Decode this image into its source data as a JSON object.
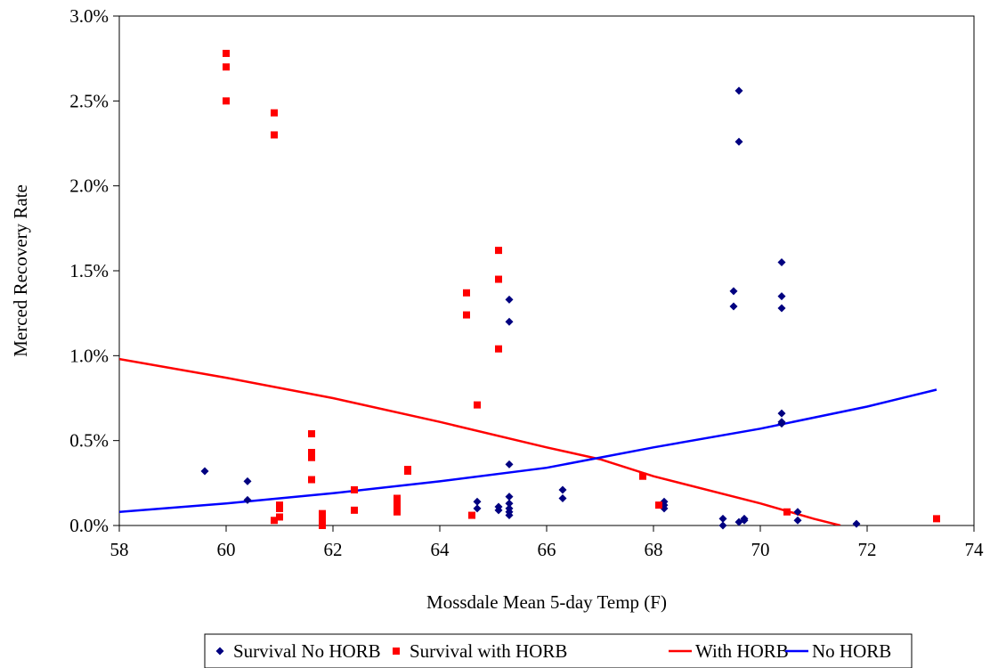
{
  "chart_data": {
    "type": "scatter",
    "xlabel": "Mossdale Mean 5-day Temp (F)",
    "ylabel": "Merced Recovery Rate",
    "xlim": [
      58,
      74
    ],
    "ylim": [
      0,
      0.03
    ],
    "x_ticks": [
      "58",
      "60",
      "62",
      "64",
      "66",
      "68",
      "70",
      "72",
      "74"
    ],
    "y_ticks": [
      "0.0%",
      "0.5%",
      "1.0%",
      "1.5%",
      "2.0%",
      "2.5%",
      "3.0%"
    ],
    "grid": false,
    "legend_position": "bottom",
    "series": [
      {
        "name": "Survival No HORB",
        "kind": "scatter",
        "marker": "diamond",
        "color": "#000080",
        "points": [
          [
            59.6,
            0.0032
          ],
          [
            60.4,
            0.0026
          ],
          [
            60.4,
            0.0015
          ],
          [
            64.7,
            0.0014
          ],
          [
            64.7,
            0.001
          ],
          [
            65.1,
            0.0011
          ],
          [
            65.1,
            0.0009
          ],
          [
            65.3,
            0.0133
          ],
          [
            65.3,
            0.012
          ],
          [
            65.3,
            0.0036
          ],
          [
            65.3,
            0.0017
          ],
          [
            65.3,
            0.0013
          ],
          [
            65.3,
            0.001
          ],
          [
            65.3,
            0.0008
          ],
          [
            65.3,
            0.0006
          ],
          [
            66.3,
            0.0021
          ],
          [
            66.3,
            0.0016
          ],
          [
            68.2,
            0.0014
          ],
          [
            68.2,
            0.0012
          ],
          [
            68.2,
            0.001
          ],
          [
            69.3,
            0.0004
          ],
          [
            69.3,
            0.0
          ],
          [
            69.5,
            0.0138
          ],
          [
            69.5,
            0.0129
          ],
          [
            69.6,
            0.0256
          ],
          [
            69.6,
            0.0226
          ],
          [
            69.6,
            0.0002
          ],
          [
            69.7,
            0.0003
          ],
          [
            69.7,
            0.0004
          ],
          [
            70.4,
            0.0155
          ],
          [
            70.4,
            0.0135
          ],
          [
            70.4,
            0.0128
          ],
          [
            70.4,
            0.0066
          ],
          [
            70.4,
            0.0061
          ],
          [
            70.4,
            0.006
          ],
          [
            70.7,
            0.0008
          ],
          [
            70.7,
            0.0003
          ],
          [
            71.8,
            0.0001
          ]
        ]
      },
      {
        "name": "Survival with HORB",
        "kind": "scatter",
        "marker": "square",
        "color": "#ff0000",
        "points": [
          [
            60.0,
            0.0278
          ],
          [
            60.0,
            0.027
          ],
          [
            60.0,
            0.025
          ],
          [
            60.9,
            0.0243
          ],
          [
            60.9,
            0.023
          ],
          [
            60.9,
            0.0003
          ],
          [
            61.0,
            0.0012
          ],
          [
            61.0,
            0.001
          ],
          [
            61.0,
            0.0005
          ],
          [
            61.6,
            0.0054
          ],
          [
            61.6,
            0.0043
          ],
          [
            61.6,
            0.004
          ],
          [
            61.6,
            0.0027
          ],
          [
            61.8,
            0.0007
          ],
          [
            61.8,
            0.0004
          ],
          [
            61.8,
            0.0002
          ],
          [
            61.8,
            0.0
          ],
          [
            62.4,
            0.0021
          ],
          [
            62.4,
            0.0009
          ],
          [
            63.2,
            0.0016
          ],
          [
            63.2,
            0.0013
          ],
          [
            63.2,
            0.0011
          ],
          [
            63.2,
            0.0008
          ],
          [
            63.4,
            0.0033
          ],
          [
            63.4,
            0.0032
          ],
          [
            64.5,
            0.0137
          ],
          [
            64.5,
            0.0124
          ],
          [
            64.6,
            0.0006
          ],
          [
            64.7,
            0.0071
          ],
          [
            65.1,
            0.0162
          ],
          [
            65.1,
            0.0145
          ],
          [
            65.1,
            0.0104
          ],
          [
            67.8,
            0.0029
          ],
          [
            68.1,
            0.0012
          ],
          [
            70.5,
            0.0008
          ],
          [
            73.3,
            0.0004
          ]
        ]
      },
      {
        "name": "With HORB",
        "kind": "line",
        "color": "#ff0000",
        "points": [
          [
            58,
            0.0098
          ],
          [
            60,
            0.0087
          ],
          [
            62,
            0.0075
          ],
          [
            64,
            0.0061
          ],
          [
            66,
            0.0046
          ],
          [
            67,
            0.0039
          ],
          [
            68,
            0.0029
          ],
          [
            70,
            0.0013
          ],
          [
            71,
            0.0004
          ],
          [
            71.5,
            0.0
          ]
        ]
      },
      {
        "name": "No HORB",
        "kind": "line",
        "color": "#0000ff",
        "points": [
          [
            58,
            0.0008
          ],
          [
            60,
            0.0013
          ],
          [
            62,
            0.0019
          ],
          [
            64,
            0.0026
          ],
          [
            66,
            0.0034
          ],
          [
            68,
            0.0046
          ],
          [
            70,
            0.0057
          ],
          [
            72,
            0.007
          ],
          [
            73.3,
            0.008
          ]
        ]
      }
    ]
  }
}
